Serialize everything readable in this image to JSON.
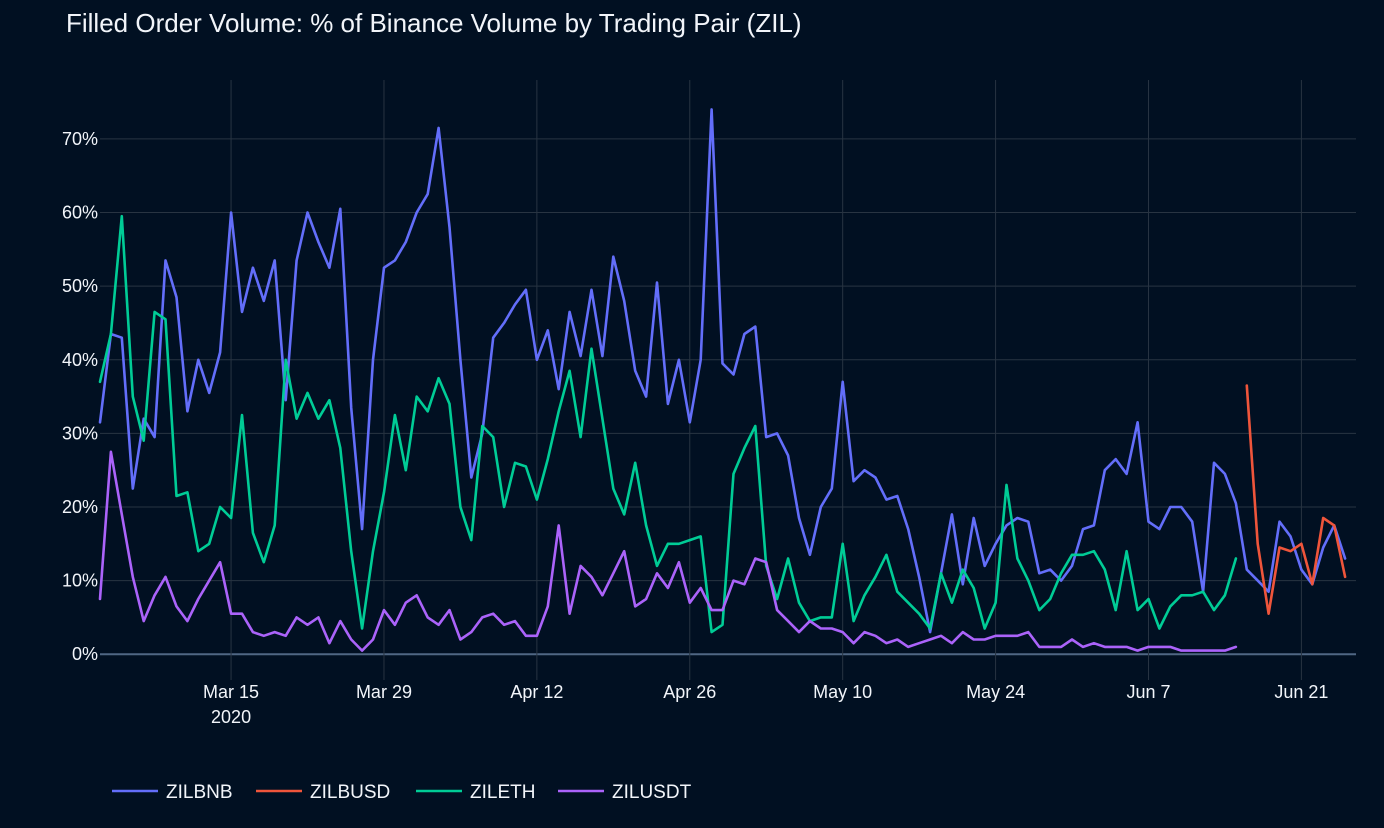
{
  "chart_data": {
    "type": "line",
    "title": "Filled Order Volume: % of Binance Volume by Trading Pair (ZIL)",
    "xlabel": "",
    "ylabel": "",
    "x_start": "2020-03-03",
    "x_range_days": [
      0,
      115
    ],
    "ylim": [
      -3.5,
      78
    ],
    "y_ticks": [
      {
        "value": 0,
        "label": "0%"
      },
      {
        "value": 10,
        "label": "10%"
      },
      {
        "value": 20,
        "label": "20%"
      },
      {
        "value": 30,
        "label": "30%"
      },
      {
        "value": 40,
        "label": "40%"
      },
      {
        "value": 50,
        "label": "50%"
      },
      {
        "value": 60,
        "label": "60%"
      },
      {
        "value": 70,
        "label": "70%"
      }
    ],
    "x_ticks": [
      {
        "day": 12,
        "label": "Mar 15",
        "sublabel": "2020"
      },
      {
        "day": 26,
        "label": "Mar 29"
      },
      {
        "day": 40,
        "label": "Apr 12"
      },
      {
        "day": 54,
        "label": "Apr 26"
      },
      {
        "day": 68,
        "label": "May 10"
      },
      {
        "day": 82,
        "label": "May 24"
      },
      {
        "day": 96,
        "label": "Jun 7"
      },
      {
        "day": 110,
        "label": "Jun 21"
      }
    ],
    "grid": true,
    "legend_position": "bottom-left",
    "series": [
      {
        "name": "ZILBNB",
        "color": "#636efa",
        "x_start_day": 0,
        "values": [
          31.5,
          43.5,
          43,
          22.5,
          32,
          29.5,
          53.5,
          48.5,
          33,
          40,
          35.5,
          41,
          60,
          46.5,
          52.5,
          48,
          53.5,
          34.5,
          53.5,
          60,
          56,
          52.5,
          60.5,
          33.5,
          17,
          40,
          52.5,
          53.5,
          56,
          60,
          62.5,
          71.5,
          58,
          40,
          24,
          30,
          43,
          45,
          47.5,
          49.5,
          40,
          44,
          36,
          46.5,
          40.5,
          49.5,
          40.5,
          54,
          48,
          38.5,
          35,
          50.5,
          34,
          40,
          31.5,
          40,
          74,
          39.5,
          38,
          43.5,
          44.5,
          29.5,
          30,
          27,
          18.5,
          13.5,
          20,
          22.5,
          37,
          23.5,
          25,
          24,
          21,
          21.5,
          17,
          10.5,
          3,
          11,
          19,
          9.5,
          18.5,
          12,
          15,
          17.5,
          18.5,
          18,
          11,
          11.5,
          10,
          12,
          17,
          17.5,
          25,
          26.5,
          24.5,
          31.5,
          18,
          17,
          20,
          20,
          18,
          8.5,
          26,
          24.5,
          20.5,
          11.5,
          10,
          8.5,
          18,
          16,
          11.5,
          9.5,
          14.5,
          17.5,
          13
        ]
      },
      {
        "name": "ZILBUSD",
        "color": "#ef553b",
        "x_start_day": 105,
        "values": [
          36.5,
          15,
          5.5,
          14.5,
          14,
          15,
          9.5,
          18.5,
          17.5,
          10.5
        ]
      },
      {
        "name": "ZILETH",
        "color": "#00cc96",
        "x_start_day": 0,
        "values": [
          37,
          43.5,
          59.5,
          35,
          29,
          46.5,
          45.5,
          21.5,
          22,
          14,
          15,
          20,
          18.5,
          32.5,
          16.5,
          12.5,
          17.5,
          40,
          32,
          35.5,
          32,
          34.5,
          28,
          14,
          3.5,
          14,
          22,
          32.5,
          25,
          35,
          33,
          37.5,
          34,
          20,
          15.5,
          31,
          29.5,
          20,
          26,
          25.5,
          21,
          26.5,
          33,
          38.5,
          29.5,
          41.5,
          32,
          22.5,
          19,
          26,
          17.5,
          12,
          15,
          15,
          15.5,
          16,
          3,
          4,
          24.5,
          28,
          31,
          12,
          7.5,
          13,
          7,
          4.5,
          5,
          5,
          15,
          4.5,
          8,
          10.5,
          13.5,
          8.5,
          7,
          5.5,
          3.5,
          11,
          7,
          11.5,
          9,
          3.5,
          7,
          23,
          13,
          10,
          6,
          7.5,
          11,
          13.5,
          13.5,
          14,
          11.5,
          6,
          14,
          6,
          7.5,
          3.5,
          6.5,
          8,
          8,
          8.5,
          6,
          8,
          13
        ]
      },
      {
        "name": "ZILUSDT",
        "color": "#ab63fa",
        "x_start_day": 0,
        "values": [
          7.5,
          27.5,
          19,
          10.5,
          4.5,
          8,
          10.5,
          6.5,
          4.5,
          7.5,
          10,
          12.5,
          5.5,
          5.5,
          3,
          2.5,
          3,
          2.5,
          5,
          4,
          5,
          1.5,
          4.5,
          2,
          0.5,
          2,
          6,
          4,
          7,
          8,
          5,
          4,
          6,
          2,
          3,
          5,
          5.5,
          4,
          4.5,
          2.5,
          2.5,
          6.5,
          17.5,
          5.5,
          12,
          10.5,
          8,
          11,
          14,
          6.5,
          7.5,
          11,
          9,
          12.5,
          7,
          9,
          6,
          6,
          10,
          9.5,
          13,
          12.5,
          6,
          4.5,
          3,
          4.5,
          3.5,
          3.5,
          3,
          1.5,
          3,
          2.5,
          1.5,
          2,
          1,
          1.5,
          2,
          2.5,
          1.5,
          3,
          2,
          2,
          2.5,
          2.5,
          2.5,
          3,
          1,
          1,
          1,
          2,
          1,
          1.5,
          1,
          1,
          1,
          0.5,
          1,
          1,
          1,
          0.5,
          0.5,
          0.5,
          0.5,
          0.5,
          1
        ]
      }
    ]
  }
}
